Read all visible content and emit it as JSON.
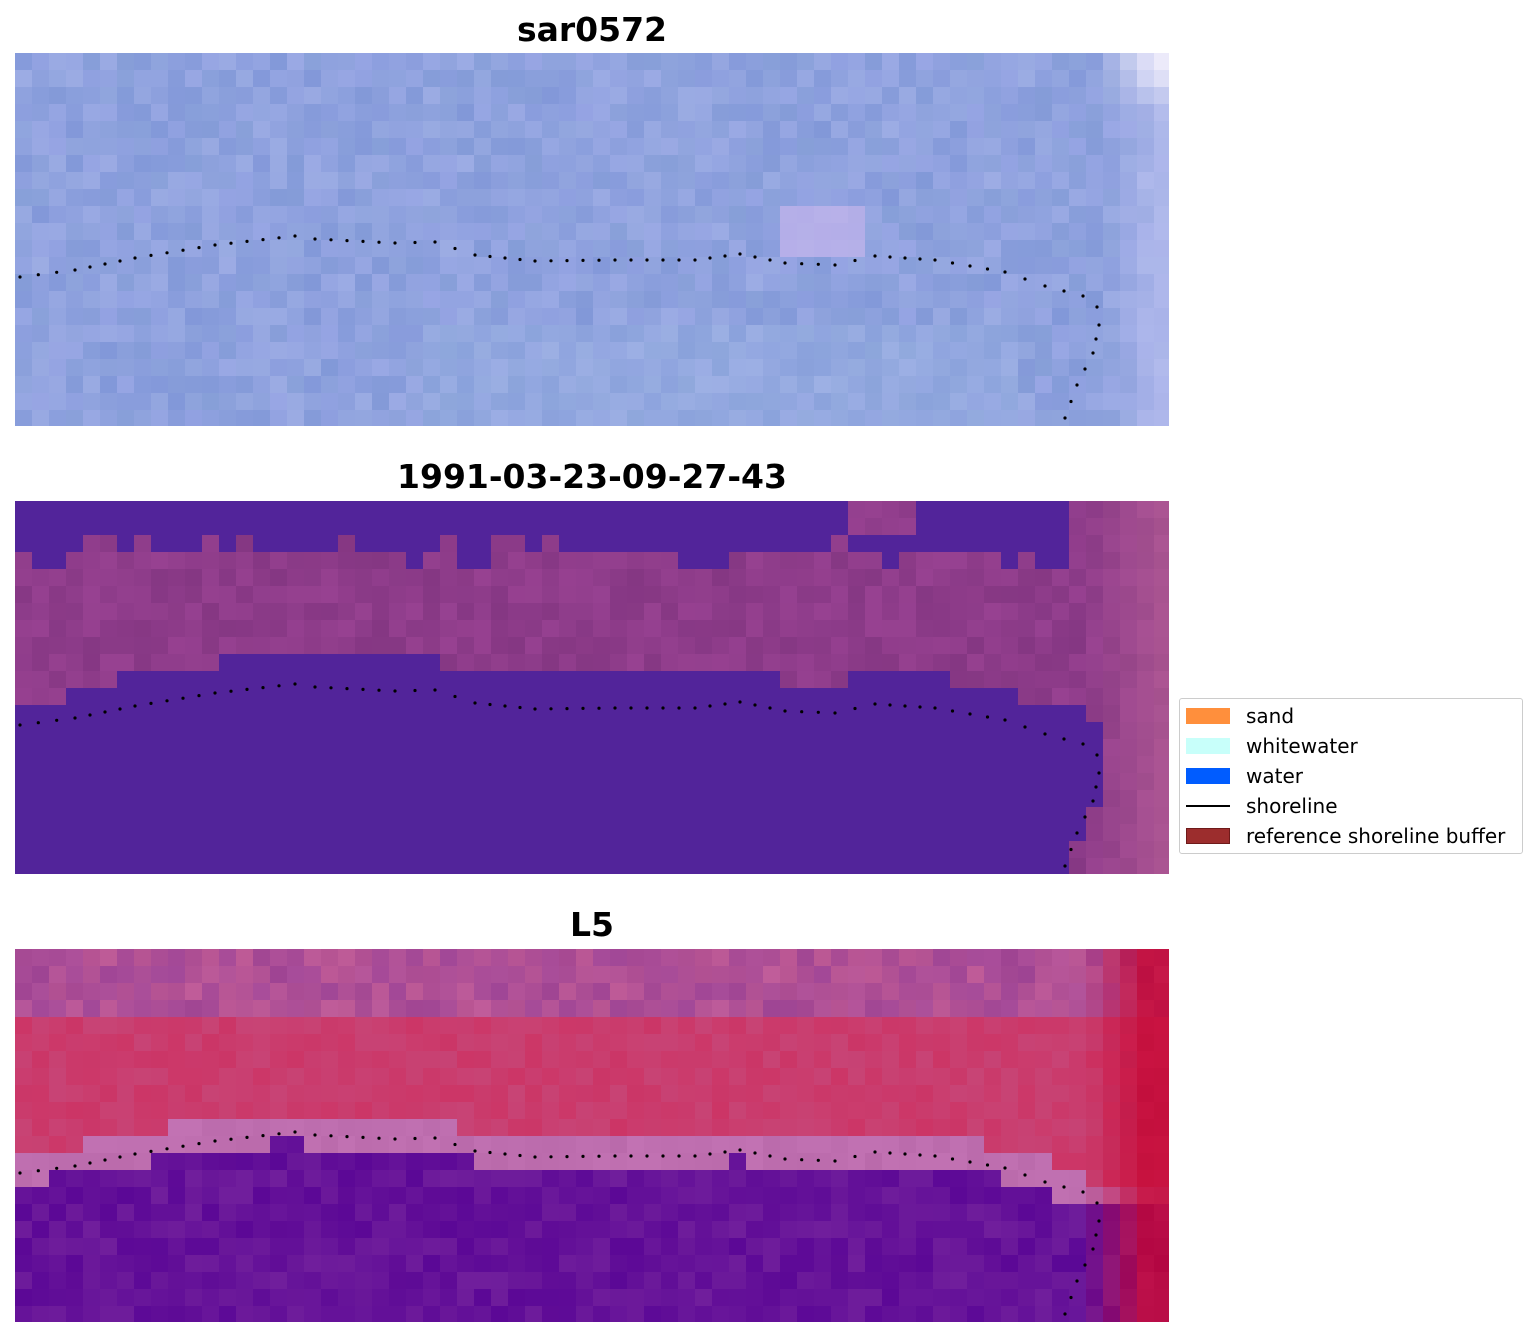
{
  "panels": [
    {
      "id": "rgb",
      "title": "sar0572"
    },
    {
      "id": "classified",
      "title": "1991-03-23-09-27-43"
    },
    {
      "id": "index",
      "title": "L5"
    }
  ],
  "legend": {
    "items": [
      {
        "label": "sand",
        "kind": "patch",
        "color": "#ff8f3c",
        "edge": "#ff8f3c"
      },
      {
        "label": "whitewater",
        "kind": "patch",
        "color": "#c8fffa",
        "edge": "#c8fffa"
      },
      {
        "label": "water",
        "kind": "patch",
        "color": "#005cff",
        "edge": "#005cff"
      },
      {
        "label": "shoreline",
        "kind": "line",
        "color": "#000000",
        "edge": "#000000"
      },
      {
        "label": "reference shoreline buffer",
        "kind": "patch",
        "color": "#9c2d2d",
        "edge": "#6e1a1a"
      }
    ]
  },
  "colors": {
    "rgb_base": "#8fa2de",
    "classified_water": "#52249a",
    "classified_land": "#8e3c8a",
    "index_low": "#5e0a9a",
    "index_high": "#c41848"
  }
}
